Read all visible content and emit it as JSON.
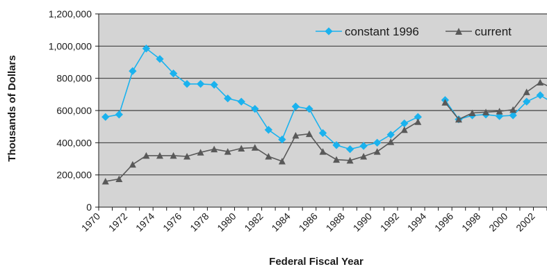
{
  "chart_data": {
    "type": "line",
    "title": "",
    "xlabel": "Federal Fiscal Year",
    "ylabel": "Thousands of Dollars",
    "xlim": [
      1970,
      2003
    ],
    "ylim": [
      0,
      1200000
    ],
    "y_ticks": [
      0,
      200000,
      400000,
      600000,
      800000,
      1000000,
      1200000
    ],
    "y_tick_labels": [
      "0",
      "200,000",
      "400,000",
      "600,000",
      "800,000",
      "1,000,000",
      "1,200,000"
    ],
    "x_ticks": [
      1970,
      1972,
      1974,
      1976,
      1978,
      1980,
      1982,
      1984,
      1986,
      1988,
      1990,
      1992,
      1994,
      1996,
      1998,
      2000,
      2002
    ],
    "x_tick_labels": [
      "1970",
      "1972",
      "1974",
      "1976",
      "1978",
      "1980",
      "1982",
      "1984",
      "1986",
      "1988",
      "1990",
      "1992",
      "1994",
      "1996",
      "1998",
      "2000",
      "2002"
    ],
    "grid": "horizontal",
    "legend_position": "top-right",
    "plot_background": "#d4d4d4",
    "series": [
      {
        "name": "constant 1996",
        "color": "#1ab2ee",
        "marker": "diamond",
        "x": [
          1970.5,
          1971.5,
          1972.5,
          1973.5,
          1974.5,
          1975.5,
          1976.5,
          1977.5,
          1978.5,
          1979.5,
          1980.5,
          1981.5,
          1982.5,
          1983.5,
          1984.5,
          1985.5,
          1986.5,
          1987.5,
          1988.5,
          1989.5,
          1990.5,
          1991.5,
          1992.5,
          1993.5,
          null,
          1995.5,
          1996.5,
          1997.5,
          1998.5,
          1999.5,
          2000.5,
          2001.5,
          2002.5,
          2003.5
        ],
        "y": [
          560000,
          575000,
          845000,
          985000,
          920000,
          830000,
          765000,
          765000,
          760000,
          675000,
          655000,
          610000,
          480000,
          420000,
          625000,
          610000,
          460000,
          385000,
          360000,
          380000,
          400000,
          450000,
          520000,
          560000,
          null,
          665000,
          545000,
          570000,
          575000,
          565000,
          570000,
          655000,
          695000,
          645000
        ]
      },
      {
        "name": "current",
        "color": "#595959",
        "marker": "triangle",
        "x": [
          1970.5,
          1971.5,
          1972.5,
          1973.5,
          1974.5,
          1975.5,
          1976.5,
          1977.5,
          1978.5,
          1979.5,
          1980.5,
          1981.5,
          1982.5,
          1983.5,
          1984.5,
          1985.5,
          1986.5,
          1987.5,
          1988.5,
          1989.5,
          1990.5,
          1991.5,
          1992.5,
          1993.5,
          null,
          1995.5,
          1996.5,
          1997.5,
          1998.5,
          1999.5,
          2000.5,
          2001.5,
          2002.5,
          2003.5
        ],
        "y": [
          160000,
          175000,
          265000,
          320000,
          320000,
          320000,
          315000,
          340000,
          360000,
          345000,
          365000,
          370000,
          315000,
          285000,
          445000,
          455000,
          345000,
          295000,
          290000,
          315000,
          345000,
          405000,
          480000,
          530000,
          null,
          650000,
          545000,
          585000,
          590000,
          595000,
          605000,
          715000,
          775000,
          735000
        ]
      }
    ]
  }
}
